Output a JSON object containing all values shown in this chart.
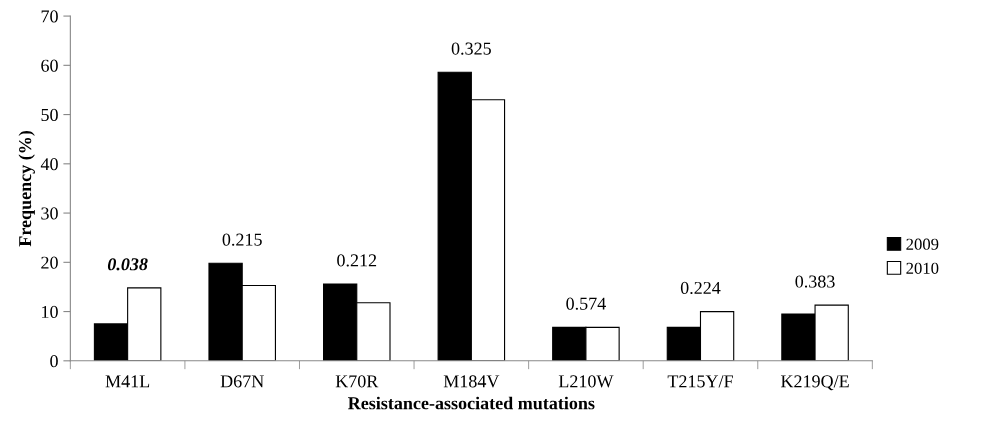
{
  "chart_data": {
    "type": "bar",
    "xlabel": "Resistance-associated mutations",
    "ylabel": "Frequency (%)",
    "categories": [
      "M41L",
      "D67N",
      "K70R",
      "M184V",
      "L210W",
      "T215Y/F",
      "K219Q/E"
    ],
    "series": [
      {
        "name": "2009",
        "color": "#000000",
        "values": [
          7.5,
          19.8,
          15.6,
          58.6,
          6.8,
          6.8,
          9.5
        ]
      },
      {
        "name": "2010",
        "color": "#ffffff",
        "values": [
          14.8,
          15.3,
          11.8,
          53.0,
          6.8,
          10.0,
          11.3
        ]
      }
    ],
    "annotations": [
      "0.038",
      "0.215",
      "0.212",
      "0.325",
      "0.574",
      "0.224",
      "0.383"
    ],
    "ylim": [
      0,
      70
    ],
    "yticks": [
      0,
      10,
      20,
      30,
      40,
      50,
      60,
      70
    ],
    "grid": false,
    "legend": "right"
  }
}
